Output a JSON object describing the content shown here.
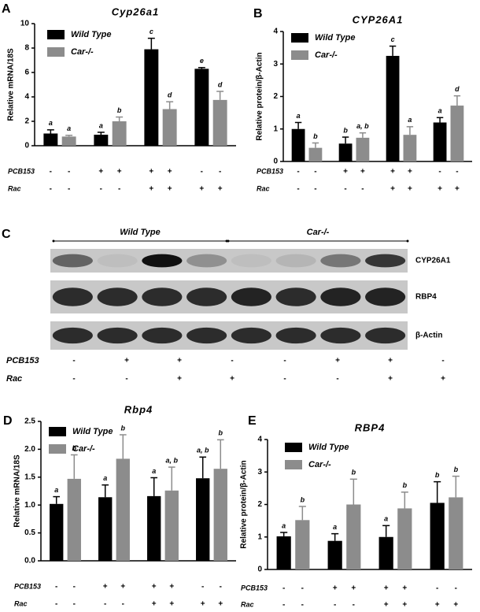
{
  "chart_data": [
    {
      "type": "bar",
      "panel": "A",
      "title": "Cyp26a1",
      "ylabel": "Relative mRNA/18S",
      "ylim": [
        0,
        10
      ],
      "yticks": [
        0,
        2,
        4,
        6,
        8,
        10
      ],
      "series": [
        {
          "name": "Wild Type",
          "color": "#000000",
          "values": [
            1.0,
            0.9,
            7.9,
            6.3
          ],
          "errors": [
            0.3,
            0.2,
            0.9,
            0.1
          ],
          "letters": [
            "a",
            "a",
            "c",
            "e"
          ]
        },
        {
          "name": "Car-/-",
          "color": "#8c8c8c",
          "values": [
            0.75,
            2.0,
            3.0,
            3.75
          ],
          "errors": [
            0.1,
            0.35,
            0.6,
            0.7
          ],
          "letters": [
            "a",
            "b",
            "d",
            "d"
          ]
        }
      ],
      "treatments": [
        {
          "name": "PCB153",
          "signs": [
            "-",
            "-",
            "+",
            "+",
            "+",
            "+",
            "-",
            "-"
          ]
        },
        {
          "name": "Rac",
          "signs": [
            "-",
            "-",
            "-",
            "-",
            "+",
            "+",
            "+",
            "+"
          ]
        }
      ]
    },
    {
      "type": "bar",
      "panel": "B",
      "title": "CYP26A1",
      "ylabel": "Relative protein/β-Actin",
      "ylim": [
        0,
        4
      ],
      "yticks": [
        0,
        1,
        2,
        3,
        4
      ],
      "series": [
        {
          "name": "Wild Type",
          "color": "#000000",
          "values": [
            1.0,
            0.55,
            3.25,
            1.2
          ],
          "errors": [
            0.2,
            0.2,
            0.3,
            0.15
          ],
          "letters": [
            "a",
            "b",
            "c",
            "a"
          ]
        },
        {
          "name": "Car-/-",
          "color": "#8c8c8c",
          "values": [
            0.42,
            0.73,
            0.82,
            1.72
          ],
          "errors": [
            0.15,
            0.15,
            0.25,
            0.3
          ],
          "letters": [
            "b",
            "a, b",
            "a",
            "d"
          ]
        }
      ],
      "treatments": [
        {
          "name": "PCB153",
          "signs": [
            "-",
            "-",
            "+",
            "+",
            "+",
            "+",
            "-",
            "-"
          ]
        },
        {
          "name": "Rac",
          "signs": [
            "-",
            "-",
            "-",
            "-",
            "+",
            "+",
            "+",
            "+"
          ]
        }
      ]
    },
    {
      "type": "bar",
      "panel": "D",
      "title": "Rbp4",
      "ylabel": "Relative mRNA/18S",
      "ylim": [
        0,
        2.5
      ],
      "yticks": [
        {
          "value": 0,
          "label": "0.0"
        },
        0.5,
        {
          "value": 1,
          "label": "1.0"
        },
        1.5,
        {
          "value": 2,
          "label": "2.0"
        },
        2.5
      ],
      "series": [
        {
          "name": "Wild Type",
          "color": "#000000",
          "values": [
            1.02,
            1.14,
            1.16,
            1.48
          ],
          "errors": [
            0.13,
            0.22,
            0.33,
            0.38
          ],
          "letters": [
            "a",
            "a",
            "a",
            "a, b"
          ]
        },
        {
          "name": "Car-/-",
          "color": "#8c8c8c",
          "values": [
            1.47,
            1.83,
            1.26,
            1.65
          ],
          "errors": [
            0.43,
            0.43,
            0.42,
            0.52
          ],
          "letters": [
            "b",
            "b",
            "a, b",
            "b"
          ]
        }
      ],
      "treatments": [
        {
          "name": "PCB153",
          "signs": [
            "-",
            "-",
            "+",
            "+",
            "+",
            "+",
            "-",
            "-"
          ]
        },
        {
          "name": "Rac",
          "signs": [
            "-",
            "-",
            "-",
            "-",
            "+",
            "+",
            "+",
            "+"
          ]
        }
      ]
    },
    {
      "type": "bar",
      "panel": "E",
      "title": "RBP4",
      "ylabel": "Relative protein/β-Actin",
      "ylim": [
        0,
        4
      ],
      "yticks": [
        0,
        1,
        2,
        3,
        4
      ],
      "series": [
        {
          "name": "Wild Type",
          "color": "#000000",
          "values": [
            1.02,
            0.88,
            1.0,
            2.05
          ],
          "errors": [
            0.12,
            0.22,
            0.35,
            0.65
          ],
          "letters": [
            "a",
            "a",
            "a",
            "b"
          ]
        },
        {
          "name": "Car-/-",
          "color": "#8c8c8c",
          "values": [
            1.52,
            2.0,
            1.88,
            2.22
          ],
          "errors": [
            0.42,
            0.78,
            0.5,
            0.65
          ],
          "letters": [
            "b",
            "b",
            "b",
            "b"
          ]
        }
      ],
      "treatments": [
        {
          "name": "PCB153",
          "signs": [
            "-",
            "-",
            "+",
            "+",
            "+",
            "+",
            "-",
            "-"
          ]
        },
        {
          "name": "Rac",
          "signs": [
            "-",
            "-",
            "-",
            "-",
            "+",
            "+",
            "+",
            "+"
          ]
        }
      ]
    }
  ],
  "blot": {
    "panel": "C",
    "groups": [
      "Wild Type",
      "Car-/-"
    ],
    "proteins": [
      "CYP26A1",
      "RBP4",
      "β-Actin"
    ],
    "treatments": [
      {
        "name": "PCB153",
        "signs": [
          "-",
          "+",
          "+",
          "-",
          "-",
          "+",
          "+",
          "-"
        ]
      },
      {
        "name": "Rac",
        "signs": [
          "-",
          "-",
          "+",
          "+",
          "-",
          "-",
          "+",
          "+"
        ]
      }
    ]
  }
}
